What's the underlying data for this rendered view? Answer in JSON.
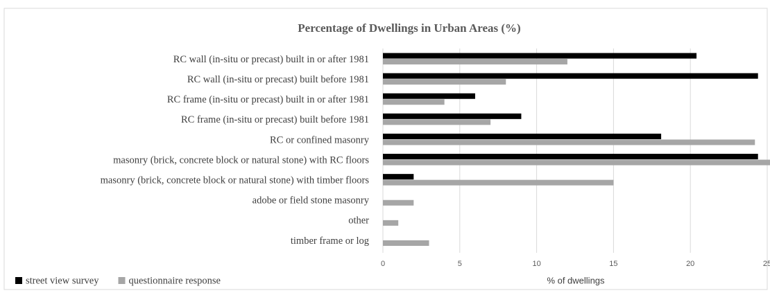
{
  "chart_data": {
    "type": "hbar",
    "title": "Percentage of Dwellings in Urban Areas (%)",
    "x_label": "% of dwellings",
    "categories": [
      "RC wall (in-situ or precast) built in or after 1981",
      "RC wall  (in-situ or precast) built before 1981",
      "RC frame (in-situ or precast) built in or after 1981",
      "RC frame (in-situ or precast) built before 1981",
      "RC or confined masonry",
      "masonry (brick, concrete block or natural stone) with RC floors",
      "masonry (brick, concrete block or natural stone) with timber floors",
      "adobe or field stone masonry",
      "other",
      "timber frame or log"
    ],
    "series": [
      {
        "name": "street view survey",
        "color": "#000000",
        "values": [
          20.4,
          24.4,
          6,
          9,
          18.1,
          24.4,
          2,
          0,
          0,
          0
        ]
      },
      {
        "name": "questionnaire response",
        "color": "#a6a6a6",
        "values": [
          12,
          8,
          4,
          7,
          24.2,
          25.2,
          15,
          2,
          1,
          3
        ]
      }
    ],
    "xlim": [
      0,
      25
    ],
    "xticks": [
      0,
      5,
      10,
      15,
      20,
      25
    ],
    "grid": true,
    "legend": "bottom-left"
  }
}
